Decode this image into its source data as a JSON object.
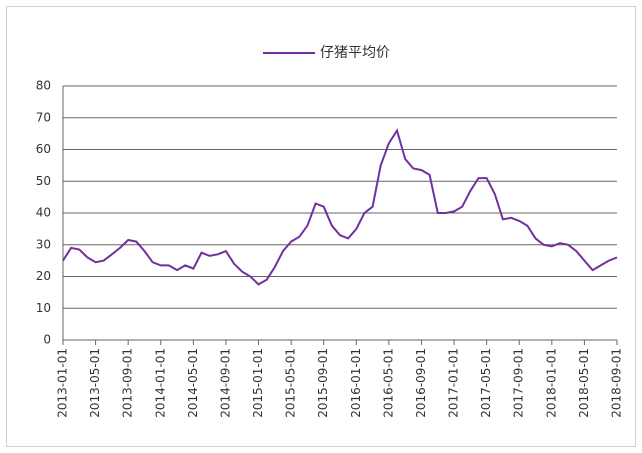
{
  "chart_data": {
    "type": "line",
    "x": [
      "2013-01-01",
      "2013-02-01",
      "2013-03-01",
      "2013-04-01",
      "2013-05-01",
      "2013-06-01",
      "2013-07-01",
      "2013-08-01",
      "2013-09-01",
      "2013-10-01",
      "2013-11-01",
      "2013-12-01",
      "2014-01-01",
      "2014-02-01",
      "2014-03-01",
      "2014-04-01",
      "2014-05-01",
      "2014-06-01",
      "2014-07-01",
      "2014-08-01",
      "2014-09-01",
      "2014-10-01",
      "2014-11-01",
      "2014-12-01",
      "2015-01-01",
      "2015-02-01",
      "2015-03-01",
      "2015-04-01",
      "2015-05-01",
      "2015-06-01",
      "2015-07-01",
      "2015-08-01",
      "2015-09-01",
      "2015-10-01",
      "2015-11-01",
      "2015-12-01",
      "2016-01-01",
      "2016-02-01",
      "2016-03-01",
      "2016-04-01",
      "2016-05-01",
      "2016-06-01",
      "2016-07-01",
      "2016-08-01",
      "2016-09-01",
      "2016-10-01",
      "2016-11-01",
      "2016-12-01",
      "2017-01-01",
      "2017-02-01",
      "2017-03-01",
      "2017-04-01",
      "2017-05-01",
      "2017-06-01",
      "2017-07-01",
      "2017-08-01",
      "2017-09-01",
      "2017-10-01",
      "2017-11-01",
      "2017-12-01",
      "2018-01-01",
      "2018-02-01",
      "2018-03-01",
      "2018-04-01",
      "2018-05-01",
      "2018-06-01",
      "2018-07-01",
      "2018-08-01",
      "2018-09-01"
    ],
    "series": [
      {
        "name": "仔猪平均价",
        "color": "#7030a0",
        "values": [
          25,
          29,
          28.5,
          26,
          24.5,
          25,
          27,
          29,
          31.5,
          31,
          28,
          24.5,
          23.5,
          23.5,
          22,
          23.5,
          22.5,
          27.5,
          26.5,
          27,
          28,
          24,
          21.5,
          20,
          17.5,
          19,
          23,
          28,
          31,
          32.5,
          36,
          43,
          42,
          36,
          33,
          32,
          35,
          40,
          42,
          55,
          62,
          66,
          57,
          54,
          53.5,
          52,
          40,
          40,
          40.5,
          42,
          47,
          51,
          51,
          46,
          38,
          38.5,
          37.5,
          36,
          32,
          30,
          29.5,
          30.5,
          30,
          28,
          25,
          22,
          23.5,
          25,
          26
        ]
      }
    ],
    "xticks": [
      "2013-01-01",
      "2013-05-01",
      "2013-09-01",
      "2014-01-01",
      "2014-05-01",
      "2014-09-01",
      "2015-01-01",
      "2015-05-01",
      "2015-09-01",
      "2016-01-01",
      "2016-05-01",
      "2016-09-01",
      "2017-01-01",
      "2017-05-01",
      "2017-09-01",
      "2018-01-01",
      "2018-05-01",
      "2018-09-01"
    ],
    "xlim": [
      "2013-01-01",
      "2018-09-01"
    ],
    "ylim": [
      0,
      80
    ],
    "yticks": [
      0,
      10,
      20,
      30,
      40,
      50,
      60,
      70,
      80
    ],
    "grid": true,
    "legend": "top"
  }
}
